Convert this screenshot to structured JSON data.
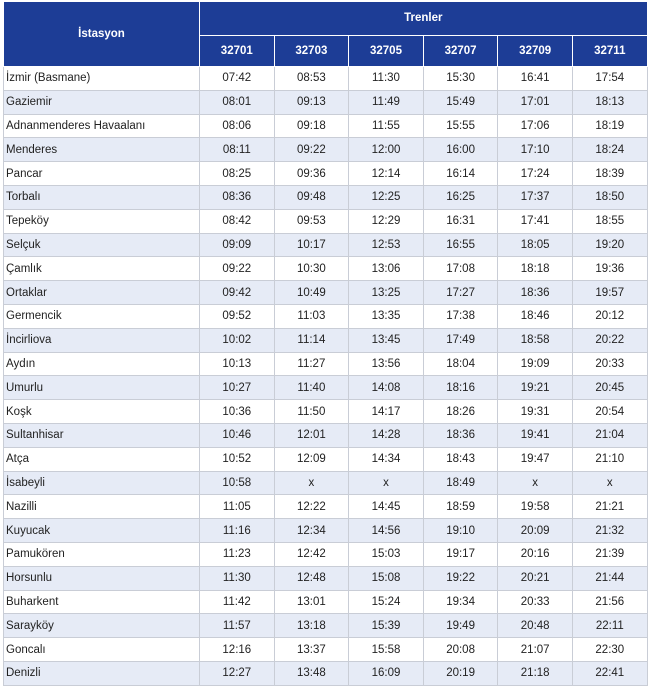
{
  "table": {
    "station_header": "İstasyon",
    "trains_header": "Trenler",
    "train_numbers": [
      "32701",
      "32703",
      "32705",
      "32707",
      "32709",
      "32711"
    ],
    "rows": [
      {
        "station": "İzmir (Basmane)",
        "times": [
          "07:42",
          "08:53",
          "11:30",
          "15:30",
          "16:41",
          "17:54"
        ]
      },
      {
        "station": "Gaziemir",
        "times": [
          "08:01",
          "09:13",
          "11:49",
          "15:49",
          "17:01",
          "18:13"
        ]
      },
      {
        "station": "Adnanmenderes Havaalanı",
        "times": [
          "08:06",
          "09:18",
          "11:55",
          "15:55",
          "17:06",
          "18:19"
        ]
      },
      {
        "station": "Menderes",
        "times": [
          "08:11",
          "09:22",
          "12:00",
          "16:00",
          "17:10",
          "18:24"
        ]
      },
      {
        "station": "Pancar",
        "times": [
          "08:25",
          "09:36",
          "12:14",
          "16:14",
          "17:24",
          "18:39"
        ]
      },
      {
        "station": "Torbalı",
        "times": [
          "08:36",
          "09:48",
          "12:25",
          "16:25",
          "17:37",
          "18:50"
        ]
      },
      {
        "station": "Tepeköy",
        "times": [
          "08:42",
          "09:53",
          "12:29",
          "16:31",
          "17:41",
          "18:55"
        ]
      },
      {
        "station": "Selçuk",
        "times": [
          "09:09",
          "10:17",
          "12:53",
          "16:55",
          "18:05",
          "19:20"
        ]
      },
      {
        "station": "Çamlık",
        "times": [
          "09:22",
          "10:30",
          "13:06",
          "17:08",
          "18:18",
          "19:36"
        ]
      },
      {
        "station": "Ortaklar",
        "times": [
          "09:42",
          "10:49",
          "13:25",
          "17:27",
          "18:36",
          "19:57"
        ]
      },
      {
        "station": "Germencik",
        "times": [
          "09:52",
          "11:03",
          "13:35",
          "17:38",
          "18:46",
          "20:12"
        ]
      },
      {
        "station": "İncirliova",
        "times": [
          "10:02",
          "11:14",
          "13:45",
          "17:49",
          "18:58",
          "20:22"
        ]
      },
      {
        "station": "Aydın",
        "times": [
          "10:13",
          "11:27",
          "13:56",
          "18:04",
          "19:09",
          "20:33"
        ]
      },
      {
        "station": "Umurlu",
        "times": [
          "10:27",
          "11:40",
          "14:08",
          "18:16",
          "19:21",
          "20:45"
        ]
      },
      {
        "station": "Koşk",
        "times": [
          "10:36",
          "11:50",
          "14:17",
          "18:26",
          "19:31",
          "20:54"
        ]
      },
      {
        "station": "Sultanhisar",
        "times": [
          "10:46",
          "12:01",
          "14:28",
          "18:36",
          "19:41",
          "21:04"
        ]
      },
      {
        "station": "Atça",
        "times": [
          "10:52",
          "12:09",
          "14:34",
          "18:43",
          "19:47",
          "21:10"
        ]
      },
      {
        "station": "İsabeyli",
        "times": [
          "10:58",
          "x",
          "x",
          "18:49",
          "x",
          "x"
        ]
      },
      {
        "station": "Nazilli",
        "times": [
          "11:05",
          "12:22",
          "14:45",
          "18:59",
          "19:58",
          "21:21"
        ]
      },
      {
        "station": "Kuyucak",
        "times": [
          "11:16",
          "12:34",
          "14:56",
          "19:10",
          "20:09",
          "21:32"
        ]
      },
      {
        "station": "Pamukören",
        "times": [
          "11:23",
          "12:42",
          "15:03",
          "19:17",
          "20:16",
          "21:39"
        ]
      },
      {
        "station": "Horsunlu",
        "times": [
          "11:30",
          "12:48",
          "15:08",
          "19:22",
          "20:21",
          "21:44"
        ]
      },
      {
        "station": "Buharkent",
        "times": [
          "11:42",
          "13:01",
          "15:24",
          "19:34",
          "20:33",
          "21:56"
        ]
      },
      {
        "station": "Sarayköy",
        "times": [
          "11:57",
          "13:18",
          "15:39",
          "19:49",
          "20:48",
          "22:11"
        ]
      },
      {
        "station": "Goncalı",
        "times": [
          "12:16",
          "13:37",
          "15:58",
          "20:08",
          "21:07",
          "22:30"
        ]
      },
      {
        "station": "Denizli",
        "times": [
          "12:27",
          "13:48",
          "16:09",
          "20:19",
          "21:18",
          "22:41"
        ]
      }
    ]
  },
  "colors": {
    "header_bg": "#1d3d96",
    "stripe": "#e6ebf6"
  }
}
